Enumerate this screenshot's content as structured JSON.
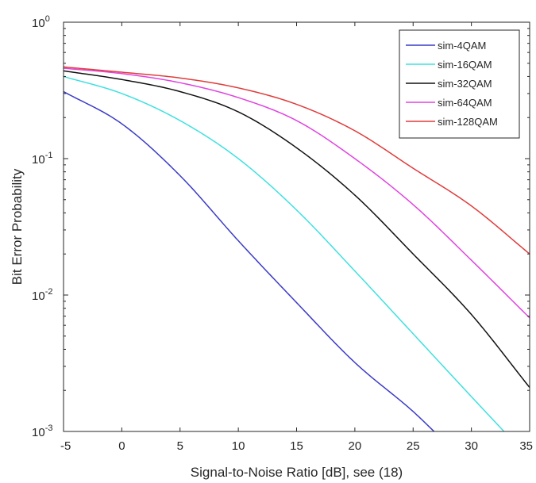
{
  "chart_data": {
    "type": "line",
    "xlabel": "Signal-to-Noise Ratio [dB], see (18)",
    "ylabel": "Bit Error Probability",
    "xlim": [
      -5,
      35
    ],
    "ylim": [
      0.001,
      1
    ],
    "yscale": "log",
    "grid": false,
    "legend_position": "top-right",
    "x_ticks": [
      "-5",
      "0",
      "5",
      "10",
      "15",
      "20",
      "25",
      "30",
      "35"
    ],
    "y_ticks": [
      {
        "base": "10",
        "exp": "0"
      },
      {
        "base": "10",
        "exp": "-1"
      },
      {
        "base": "10",
        "exp": "-2"
      },
      {
        "base": "10",
        "exp": "-3"
      }
    ],
    "series": [
      {
        "name": "sim-4QAM",
        "color": "#3b3bc8",
        "x": [
          -5,
          0,
          5,
          10,
          15,
          20,
          25,
          26.8
        ],
        "y": [
          0.31,
          0.18,
          0.075,
          0.025,
          0.0088,
          0.0032,
          0.0014,
          0.001
        ]
      },
      {
        "name": "sim-16QAM",
        "color": "#3fe0e0",
        "x": [
          -5,
          0,
          5,
          10,
          15,
          20,
          25,
          30,
          32.8
        ],
        "y": [
          0.4,
          0.3,
          0.19,
          0.1,
          0.042,
          0.015,
          0.0052,
          0.0018,
          0.001
        ]
      },
      {
        "name": "sim-32QAM",
        "color": "#111111",
        "x": [
          -5,
          0,
          5,
          10,
          15,
          20,
          25,
          30,
          35
        ],
        "y": [
          0.44,
          0.38,
          0.31,
          0.22,
          0.12,
          0.054,
          0.02,
          0.0072,
          0.0021
        ]
      },
      {
        "name": "sim-64QAM",
        "color": "#e043e0",
        "x": [
          -5,
          0,
          5,
          10,
          15,
          20,
          25,
          30,
          35
        ],
        "y": [
          0.46,
          0.42,
          0.36,
          0.28,
          0.19,
          0.1,
          0.046,
          0.018,
          0.0068
        ]
      },
      {
        "name": "sim-128QAM",
        "color": "#e03b3b",
        "x": [
          -5,
          0,
          5,
          10,
          15,
          20,
          25,
          30,
          35
        ],
        "y": [
          0.47,
          0.43,
          0.39,
          0.33,
          0.25,
          0.16,
          0.085,
          0.045,
          0.02
        ]
      }
    ]
  }
}
